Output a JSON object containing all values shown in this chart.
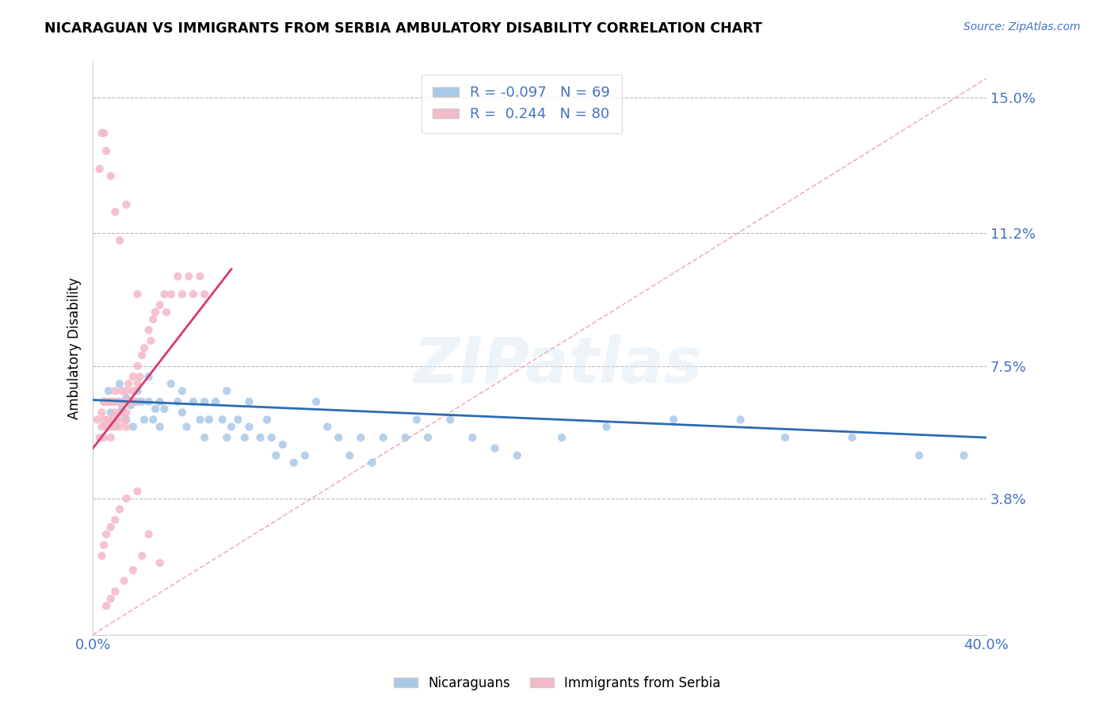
{
  "title": "NICARAGUAN VS IMMIGRANTS FROM SERBIA AMBULATORY DISABILITY CORRELATION CHART",
  "source": "Source: ZipAtlas.com",
  "ylabel": "Ambulatory Disability",
  "ytick_vals": [
    0.038,
    0.075,
    0.112,
    0.15
  ],
  "ytick_labels": [
    "3.8%",
    "7.5%",
    "11.2%",
    "15.0%"
  ],
  "xmin": 0.0,
  "xmax": 0.4,
  "ymin": 0.0,
  "ymax": 0.16,
  "blue_R": -0.097,
  "blue_N": 69,
  "pink_R": 0.244,
  "pink_N": 80,
  "blue_color": "#a8c8e8",
  "pink_color": "#f4b8c8",
  "blue_line_color": "#2b6cb0",
  "pink_line_color": "#d63b6e",
  "diag_color": "#e8a0b0",
  "scatter_alpha": 0.85,
  "scatter_size": 55,
  "legend_label_blue": "Nicaraguans",
  "legend_label_pink": "Immigrants from Serbia",
  "watermark": "ZIPatlas",
  "blue_scatter_x": [
    0.005,
    0.007,
    0.008,
    0.01,
    0.012,
    0.013,
    0.015,
    0.015,
    0.017,
    0.018,
    0.02,
    0.02,
    0.022,
    0.023,
    0.025,
    0.025,
    0.027,
    0.028,
    0.03,
    0.03,
    0.032,
    0.035,
    0.038,
    0.04,
    0.04,
    0.042,
    0.045,
    0.048,
    0.05,
    0.05,
    0.052,
    0.055,
    0.058,
    0.06,
    0.06,
    0.062,
    0.065,
    0.068,
    0.07,
    0.07,
    0.075,
    0.078,
    0.08,
    0.082,
    0.085,
    0.09,
    0.095,
    0.1,
    0.105,
    0.11,
    0.115,
    0.12,
    0.125,
    0.13,
    0.14,
    0.145,
    0.15,
    0.16,
    0.17,
    0.18,
    0.19,
    0.21,
    0.23,
    0.26,
    0.29,
    0.31,
    0.34,
    0.37,
    0.39
  ],
  "blue_scatter_y": [
    0.065,
    0.068,
    0.062,
    0.065,
    0.07,
    0.063,
    0.066,
    0.06,
    0.064,
    0.058,
    0.065,
    0.068,
    0.065,
    0.06,
    0.065,
    0.072,
    0.06,
    0.063,
    0.058,
    0.065,
    0.063,
    0.07,
    0.065,
    0.062,
    0.068,
    0.058,
    0.065,
    0.06,
    0.055,
    0.065,
    0.06,
    0.065,
    0.06,
    0.055,
    0.068,
    0.058,
    0.06,
    0.055,
    0.058,
    0.065,
    0.055,
    0.06,
    0.055,
    0.05,
    0.053,
    0.048,
    0.05,
    0.065,
    0.058,
    0.055,
    0.05,
    0.055,
    0.048,
    0.055,
    0.055,
    0.06,
    0.055,
    0.06,
    0.055,
    0.052,
    0.05,
    0.055,
    0.058,
    0.06,
    0.06,
    0.055,
    0.055,
    0.05,
    0.05
  ],
  "pink_scatter_x": [
    0.002,
    0.003,
    0.004,
    0.004,
    0.005,
    0.005,
    0.005,
    0.006,
    0.006,
    0.007,
    0.007,
    0.008,
    0.008,
    0.008,
    0.009,
    0.009,
    0.01,
    0.01,
    0.01,
    0.011,
    0.011,
    0.012,
    0.012,
    0.013,
    0.013,
    0.014,
    0.014,
    0.015,
    0.015,
    0.015,
    0.016,
    0.016,
    0.017,
    0.018,
    0.018,
    0.019,
    0.02,
    0.02,
    0.021,
    0.022,
    0.023,
    0.025,
    0.026,
    0.027,
    0.028,
    0.03,
    0.032,
    0.033,
    0.035,
    0.038,
    0.04,
    0.043,
    0.045,
    0.048,
    0.05,
    0.02,
    0.015,
    0.012,
    0.01,
    0.008,
    0.006,
    0.005,
    0.004,
    0.025,
    0.03,
    0.022,
    0.018,
    0.014,
    0.01,
    0.008,
    0.006,
    0.012,
    0.02,
    0.015,
    0.01,
    0.008,
    0.006,
    0.005,
    0.004,
    0.003
  ],
  "pink_scatter_y": [
    0.06,
    0.055,
    0.058,
    0.062,
    0.065,
    0.06,
    0.055,
    0.065,
    0.058,
    0.065,
    0.06,
    0.065,
    0.058,
    0.055,
    0.065,
    0.06,
    0.068,
    0.062,
    0.058,
    0.065,
    0.06,
    0.065,
    0.058,
    0.068,
    0.062,
    0.065,
    0.06,
    0.068,
    0.062,
    0.058,
    0.065,
    0.07,
    0.065,
    0.072,
    0.068,
    0.065,
    0.07,
    0.075,
    0.072,
    0.078,
    0.08,
    0.085,
    0.082,
    0.088,
    0.09,
    0.092,
    0.095,
    0.09,
    0.095,
    0.1,
    0.095,
    0.1,
    0.095,
    0.1,
    0.095,
    0.04,
    0.038,
    0.035,
    0.032,
    0.03,
    0.028,
    0.025,
    0.022,
    0.028,
    0.02,
    0.022,
    0.018,
    0.015,
    0.012,
    0.01,
    0.008,
    0.11,
    0.095,
    0.12,
    0.118,
    0.128,
    0.135,
    0.14,
    0.14,
    0.13
  ]
}
